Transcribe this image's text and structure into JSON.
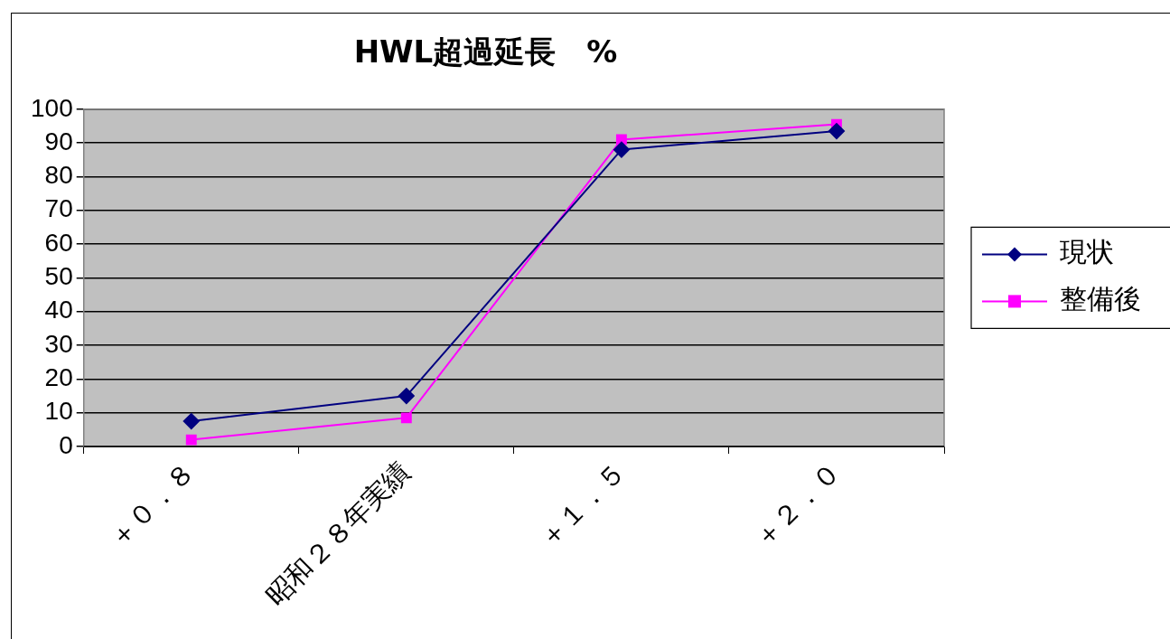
{
  "chart_data": {
    "type": "line",
    "title": "HWL超過延長　%",
    "categories": [
      "＋０．８",
      "昭和２８年実績",
      "＋１．５",
      "＋２．０"
    ],
    "series": [
      {
        "name": "現状",
        "color": "#000080",
        "values": [
          7.5,
          15,
          88,
          93.5
        ],
        "marker": "diamond"
      },
      {
        "name": "整備後",
        "color": "#ff00ff",
        "values": [
          2,
          8.5,
          91,
          95.5
        ],
        "marker": "square"
      }
    ],
    "ylim": [
      0,
      100
    ],
    "yticks": [
      0,
      10,
      20,
      30,
      40,
      50,
      60,
      70,
      80,
      90,
      100
    ],
    "grid": "y",
    "legend": "right",
    "line_style": "solid"
  }
}
